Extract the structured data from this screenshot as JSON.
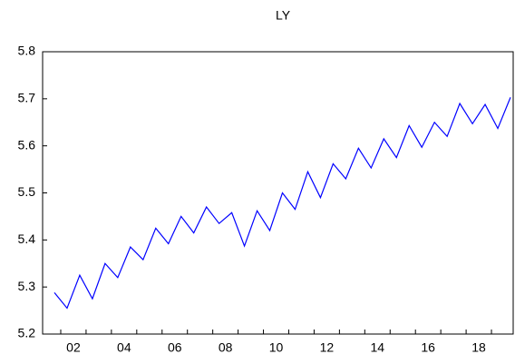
{
  "chart_data": {
    "type": "line",
    "title": "LY",
    "categories": [
      null,
      "02",
      null,
      null,
      null,
      "04",
      null,
      null,
      null,
      "06",
      null,
      null,
      null,
      "08",
      null,
      null,
      null,
      "10",
      null,
      null,
      null,
      "12",
      null,
      null,
      null,
      "14",
      null,
      null,
      null,
      "16",
      null,
      null,
      null,
      "18",
      null,
      null,
      null
    ],
    "series": [
      {
        "name": "LY",
        "color": "#0000ff",
        "values": [
          5.288,
          5.255,
          5.325,
          5.275,
          5.35,
          5.32,
          5.385,
          5.358,
          5.425,
          5.392,
          5.45,
          5.415,
          5.47,
          5.435,
          5.458,
          5.387,
          5.462,
          5.42,
          5.5,
          5.465,
          5.545,
          5.49,
          5.562,
          5.53,
          5.595,
          5.553,
          5.615,
          5.575,
          5.643,
          5.597,
          5.65,
          5.62,
          5.69,
          5.647,
          5.688,
          5.637,
          5.703
        ]
      }
    ],
    "ylim": [
      5.2,
      5.8
    ],
    "yticks": [
      5.2,
      5.3,
      5.4,
      5.5,
      5.6,
      5.7,
      5.8
    ]
  }
}
